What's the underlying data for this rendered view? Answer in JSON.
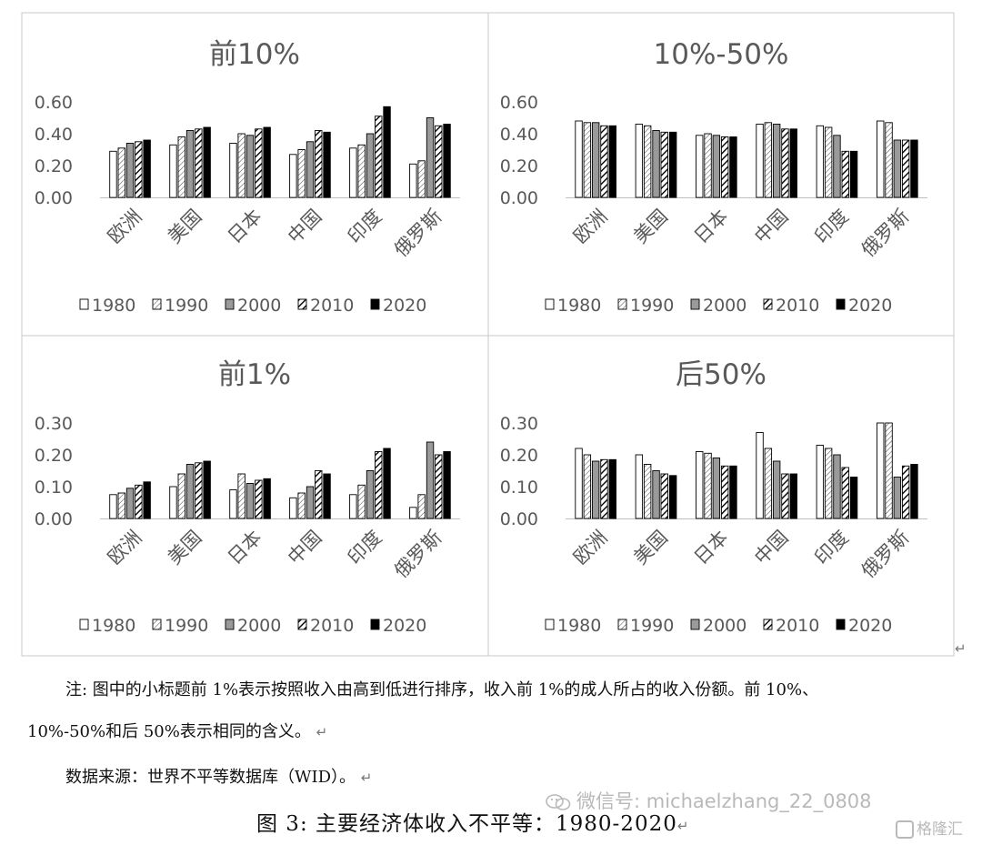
{
  "legend_years": [
    "1980",
    "1990",
    "2000",
    "2010",
    "2020"
  ],
  "chart_data": [
    {
      "type": "bar",
      "title": "前10%",
      "categories": [
        "欧洲",
        "美国",
        "日本",
        "中国",
        "印度",
        "俄罗斯"
      ],
      "ylim": [
        0,
        0.6
      ],
      "yticks": [
        "0.00",
        "0.20",
        "0.40",
        "0.60"
      ],
      "legend_position": "bottom",
      "series": [
        {
          "name": "1980",
          "values": [
            0.29,
            0.33,
            0.34,
            0.27,
            0.31,
            0.21
          ]
        },
        {
          "name": "1990",
          "values": [
            0.31,
            0.38,
            0.4,
            0.3,
            0.33,
            0.23
          ]
        },
        {
          "name": "2000",
          "values": [
            0.34,
            0.42,
            0.39,
            0.35,
            0.4,
            0.5
          ]
        },
        {
          "name": "2010",
          "values": [
            0.35,
            0.43,
            0.43,
            0.42,
            0.51,
            0.45
          ]
        },
        {
          "name": "2020",
          "values": [
            0.36,
            0.44,
            0.44,
            0.41,
            0.57,
            0.46
          ]
        }
      ]
    },
    {
      "type": "bar",
      "title": "10%-50%",
      "categories": [
        "欧洲",
        "美国",
        "日本",
        "中国",
        "印度",
        "俄罗斯"
      ],
      "ylim": [
        0,
        0.6
      ],
      "yticks": [
        "0.00",
        "0.20",
        "0.40",
        "0.60"
      ],
      "legend_position": "bottom",
      "series": [
        {
          "name": "1980",
          "values": [
            0.48,
            0.46,
            0.39,
            0.46,
            0.45,
            0.48
          ]
        },
        {
          "name": "1990",
          "values": [
            0.47,
            0.45,
            0.4,
            0.47,
            0.44,
            0.47
          ]
        },
        {
          "name": "2000",
          "values": [
            0.47,
            0.42,
            0.39,
            0.46,
            0.39,
            0.36
          ]
        },
        {
          "name": "2010",
          "values": [
            0.45,
            0.41,
            0.38,
            0.43,
            0.29,
            0.36
          ]
        },
        {
          "name": "2020",
          "values": [
            0.45,
            0.41,
            0.38,
            0.43,
            0.29,
            0.36
          ]
        }
      ]
    },
    {
      "type": "bar",
      "title": "前1%",
      "categories": [
        "欧洲",
        "美国",
        "日本",
        "中国",
        "印度",
        "俄罗斯"
      ],
      "ylim": [
        0,
        0.3
      ],
      "yticks": [
        "0.00",
        "0.10",
        "0.20",
        "0.30"
      ],
      "legend_position": "bottom",
      "series": [
        {
          "name": "1980",
          "values": [
            0.075,
            0.1,
            0.09,
            0.065,
            0.075,
            0.035
          ]
        },
        {
          "name": "1990",
          "values": [
            0.08,
            0.14,
            0.14,
            0.08,
            0.105,
            0.075
          ]
        },
        {
          "name": "2000",
          "values": [
            0.095,
            0.17,
            0.11,
            0.1,
            0.15,
            0.24
          ]
        },
        {
          "name": "2010",
          "values": [
            0.105,
            0.175,
            0.12,
            0.15,
            0.21,
            0.2
          ]
        },
        {
          "name": "2020",
          "values": [
            0.115,
            0.18,
            0.125,
            0.14,
            0.22,
            0.21
          ]
        }
      ]
    },
    {
      "type": "bar",
      "title": "后50%",
      "categories": [
        "欧洲",
        "美国",
        "日本",
        "中国",
        "印度",
        "俄罗斯"
      ],
      "ylim": [
        0,
        0.3
      ],
      "yticks": [
        "0.00",
        "0.10",
        "0.20",
        "0.30"
      ],
      "legend_position": "bottom",
      "series": [
        {
          "name": "1980",
          "values": [
            0.22,
            0.2,
            0.21,
            0.27,
            0.23,
            0.3
          ]
        },
        {
          "name": "1990",
          "values": [
            0.2,
            0.17,
            0.205,
            0.22,
            0.22,
            0.3
          ]
        },
        {
          "name": "2000",
          "values": [
            0.18,
            0.15,
            0.19,
            0.18,
            0.2,
            0.13
          ]
        },
        {
          "name": "2010",
          "values": [
            0.185,
            0.14,
            0.165,
            0.14,
            0.16,
            0.165
          ]
        },
        {
          "name": "2020",
          "values": [
            0.185,
            0.135,
            0.165,
            0.14,
            0.13,
            0.17
          ]
        }
      ]
    }
  ],
  "notes": {
    "line1": "注: 图中的小标题前 1%表示按照收入由高到低进行排序，收入前 1%的成人所占的收入份额。前 10%、",
    "line2": "10%-50%和后 50%表示相同的含义。",
    "source": "数据来源：世界不平等数据库（WID）。",
    "caption": "图 3:  主要经济体收入不平等：1980-2020",
    "para_mark": "↵"
  },
  "watermark": {
    "text": "微信号: michaelzhang_22_0808",
    "brand": "格隆汇",
    "icon": "wechat-icon"
  }
}
